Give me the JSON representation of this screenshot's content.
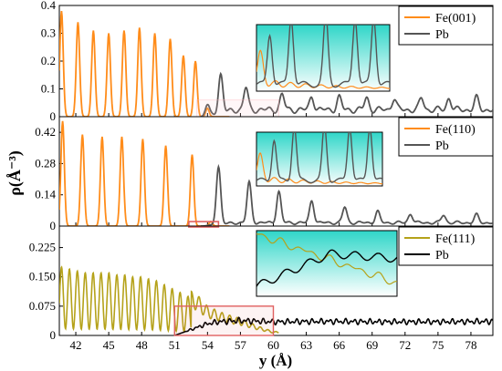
{
  "colors": {
    "fe001": "#ff8c1a",
    "fe110": "#ff8c1a",
    "fe111": "#b5a21a",
    "pb_top": "#555555",
    "pb_bottom": "#000000",
    "inset_bg_top": "#2fd6c8",
    "inset_bg_bottom": "#ffffff",
    "highlight": "#e06060"
  },
  "chart_data": {
    "type": "line",
    "xlabel": "y (Å)",
    "ylabel": "ρ(Å⁻³)",
    "xlim": [
      40.5,
      80
    ],
    "x_ticks": [
      42,
      45,
      48,
      51,
      54,
      57,
      60,
      63,
      66,
      69,
      72,
      75,
      78
    ],
    "x_tick_labels": [
      "42",
      "45",
      "48",
      "51",
      "54",
      "57",
      "60",
      "63",
      "66",
      "69",
      "72",
      "75",
      "78"
    ],
    "panels": [
      {
        "ylim": [
          0,
          0.4
        ],
        "y_ticks": [
          0,
          0.1,
          0.2,
          0.3,
          0.4
        ],
        "y_tick_labels": [
          "0",
          "0.1",
          "0.2",
          "0.3",
          "0.4"
        ],
        "legend": {
          "placement": "top-right",
          "labels": [
            "Fe(001)",
            "Pb"
          ]
        },
        "series": [
          {
            "name": "Fe(001)",
            "peaks": [
              {
                "x": 40.7,
                "y": 0.38
              },
              {
                "x": 42.2,
                "y": 0.34
              },
              {
                "x": 43.6,
                "y": 0.31
              },
              {
                "x": 45.0,
                "y": 0.3
              },
              {
                "x": 46.4,
                "y": 0.31
              },
              {
                "x": 47.8,
                "y": 0.32
              },
              {
                "x": 49.2,
                "y": 0.3
              },
              {
                "x": 50.6,
                "y": 0.28
              },
              {
                "x": 51.8,
                "y": 0.22
              },
              {
                "x": 52.9,
                "y": 0.2
              },
              {
                "x": 54.0,
                "y": 0.03
              }
            ]
          },
          {
            "name": "Pb",
            "peaks": [
              {
                "x": 54.0,
                "y": 0.04
              },
              {
                "x": 55.2,
                "y": 0.14
              },
              {
                "x": 57.5,
                "y": 0.08
              },
              {
                "x": 60.8,
                "y": 0.055
              },
              {
                "x": 63.5,
                "y": 0.048
              },
              {
                "x": 66.0,
                "y": 0.045
              },
              {
                "x": 68.5,
                "y": 0.043
              },
              {
                "x": 71.0,
                "y": 0.042
              },
              {
                "x": 73.5,
                "y": 0.042
              },
              {
                "x": 76.0,
                "y": 0.042
              },
              {
                "x": 78.5,
                "y": 0.042
              }
            ],
            "baseline": 0.025
          }
        ]
      },
      {
        "ylim": [
          0,
          0.49
        ],
        "y_ticks": [
          0,
          0.14,
          0.28,
          0.42
        ],
        "y_tick_labels": [
          "0",
          "0.14",
          "0.28",
          "0.42"
        ],
        "legend": {
          "placement": "top-right",
          "labels": [
            "Fe(110)",
            "Pb"
          ]
        },
        "series": [
          {
            "name": "Fe(110)",
            "peaks": [
              {
                "x": 40.8,
                "y": 0.47
              },
              {
                "x": 42.6,
                "y": 0.41
              },
              {
                "x": 44.4,
                "y": 0.4
              },
              {
                "x": 46.2,
                "y": 0.4
              },
              {
                "x": 48.1,
                "y": 0.39
              },
              {
                "x": 50.2,
                "y": 0.36
              },
              {
                "x": 52.6,
                "y": 0.32
              },
              {
                "x": 54.3,
                "y": 0.02
              }
            ]
          },
          {
            "name": "Pb",
            "peaks": [
              {
                "x": 55.0,
                "y": 0.26
              },
              {
                "x": 57.8,
                "y": 0.18
              },
              {
                "x": 60.5,
                "y": 0.14
              },
              {
                "x": 63.5,
                "y": 0.1
              },
              {
                "x": 66.5,
                "y": 0.07
              },
              {
                "x": 69.5,
                "y": 0.05
              },
              {
                "x": 72.5,
                "y": 0.04
              },
              {
                "x": 75.5,
                "y": 0.035
              },
              {
                "x": 78.5,
                "y": 0.035
              }
            ],
            "baseline": 0.015
          }
        ]
      },
      {
        "ylim": [
          0,
          0.28
        ],
        "y_ticks": [
          0,
          0.075,
          0.15,
          0.225
        ],
        "y_tick_labels": [
          "0",
          "0.075",
          "0.150",
          "0.225"
        ],
        "legend": {
          "placement": "top-right",
          "labels": [
            "Fe(111)",
            "Pb"
          ]
        },
        "series": [
          {
            "name": "Fe(111)",
            "peaks_start": 40.7,
            "peak_spacing": 0.72,
            "peak_count": 17,
            "peak_envelope": [
              0.175,
              0.17,
              0.165,
              0.16,
              0.16,
              0.16,
              0.16,
              0.155,
              0.155,
              0.15,
              0.15,
              0.145,
              0.14,
              0.13,
              0.12,
              0.11,
              0.1
            ],
            "tail": [
              {
                "x": 52.8,
                "y": 0.09
              },
              {
                "x": 54.0,
                "y": 0.06
              },
              {
                "x": 55.5,
                "y": 0.045
              },
              {
                "x": 57.0,
                "y": 0.035
              },
              {
                "x": 58.5,
                "y": 0.02
              },
              {
                "x": 60.0,
                "y": 0.008
              }
            ]
          },
          {
            "name": "Pb",
            "points": [
              {
                "x": 51.0,
                "y": 0.0
              },
              {
                "x": 52.0,
                "y": 0.01
              },
              {
                "x": 53.0,
                "y": 0.02
              },
              {
                "x": 54.0,
                "y": 0.03
              },
              {
                "x": 55.0,
                "y": 0.035
              },
              {
                "x": 57.0,
                "y": 0.038
              },
              {
                "x": 60.0,
                "y": 0.035
              },
              {
                "x": 65.0,
                "y": 0.036
              },
              {
                "x": 70.0,
                "y": 0.035
              },
              {
                "x": 75.0,
                "y": 0.035
              },
              {
                "x": 80.0,
                "y": 0.036
              }
            ]
          }
        ]
      }
    ]
  }
}
